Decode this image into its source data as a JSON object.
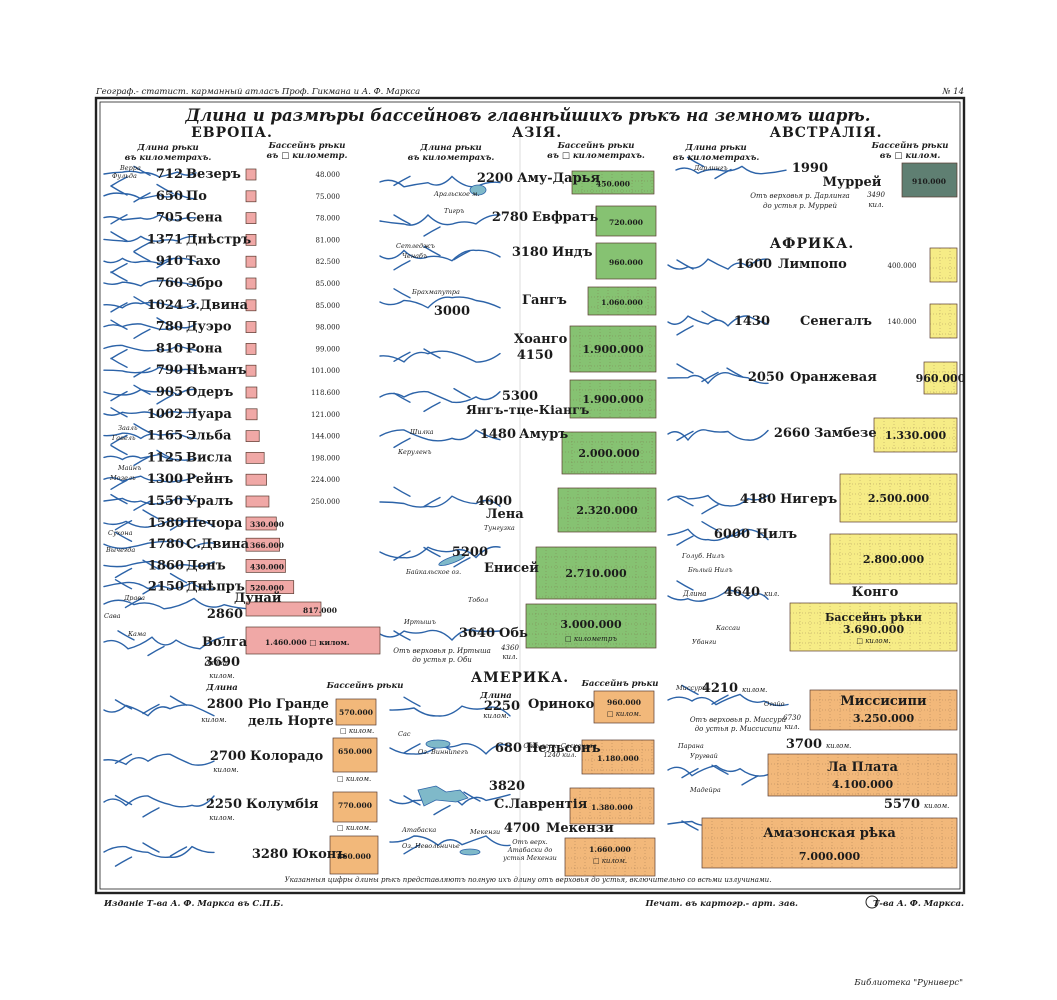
{
  "header": {
    "left": "Географ.- статист. карманный атласъ Проф. Гикмана и А. Ф. Маркса",
    "right": "№ 14",
    "title": "Длина и размѣры бассейновъ главнѣйшихъ рѣкъ на земномъ шарѣ."
  },
  "colors": {
    "europe": "#f0a8a6",
    "asia": "#86c272",
    "australia": "#5f7f72",
    "africa": "#f6ec86",
    "america": "#f2b87a",
    "river": "#2c63a8",
    "frame": "#222222"
  },
  "europe": {
    "name": "ЕВРОПА.",
    "col_length": "Длина рѣки въ километрахъ.",
    "col_basin": "Бассейнъ рѣки въ □ километр.",
    "rivers": [
      {
        "length": "712",
        "name": "Везеръ",
        "basin": "48.000"
      },
      {
        "length": "650",
        "name": "По",
        "basin": "75.000"
      },
      {
        "length": "705",
        "name": "Сена",
        "basin": "78.000"
      },
      {
        "length": "1371",
        "name": "Днѣстръ",
        "basin": "81.000"
      },
      {
        "length": "910",
        "name": "Тахо",
        "basin": "82.500"
      },
      {
        "length": "760",
        "name": "Эбро",
        "basin": "85.000"
      },
      {
        "length": "1024",
        "name": "З.Двина",
        "basin": "85.000"
      },
      {
        "length": "780",
        "name": "Дуэро",
        "basin": "98.000"
      },
      {
        "length": "810",
        "name": "Рона",
        "basin": "99.000"
      },
      {
        "length": "790",
        "name": "Нѣманъ",
        "basin": "101.000"
      },
      {
        "length": "905",
        "name": "Одеръ",
        "basin": "118.600"
      },
      {
        "length": "1002",
        "name": "Луара",
        "basin": "121.000"
      },
      {
        "length": "1165",
        "name": "Эльба",
        "basin": "144.000"
      },
      {
        "length": "1125",
        "name": "Висла",
        "basin": "198.000"
      },
      {
        "length": "1300",
        "name": "Рейнъ",
        "basin": "224.000"
      },
      {
        "length": "1550",
        "name": "Уралъ",
        "basin": "250.000"
      },
      {
        "length": "1580",
        "name": "Печора",
        "basin": "330.000"
      },
      {
        "length": "1780",
        "name": "С.Двина",
        "basin": "366.000"
      },
      {
        "length": "1860",
        "name": "Донъ",
        "basin": "430.000"
      },
      {
        "length": "2150",
        "name": "Днѣпръ",
        "basin": "520.000"
      },
      {
        "length": "2860",
        "name": "Дунай",
        "basin": "817.000"
      },
      {
        "length": "3690",
        "name": "Волга",
        "basin": "1.460.000",
        "basin_unit": "□ килом.",
        "length_prefix": "длина",
        "length_unit": "килом."
      }
    ],
    "labels": [
      "Верра",
      "Фульда",
      "Зааль",
      "Гавель",
      "Майнъ",
      "Мозель",
      "Сухона",
      "Вычегда",
      "Драва",
      "Сава",
      "Кама"
    ]
  },
  "asia": {
    "name": "АЗІЯ.",
    "col_length": "Длина рѣки въ километрахъ.",
    "col_basin": "Бассейнъ рѣки въ □ километрахъ.",
    "rivers": [
      {
        "length": "2200",
        "name": "Аму-Дарья",
        "basin": "450.000"
      },
      {
        "length": "2780",
        "name": "Евфратъ",
        "basin": "720.000"
      },
      {
        "length": "3180",
        "name": "Индъ",
        "basin": "960.000"
      },
      {
        "length": "3000",
        "name": "Гангъ",
        "basin": "1.060.000"
      },
      {
        "length": "4150",
        "name": "Хоанго",
        "basin": "1.900.000"
      },
      {
        "length": "5300",
        "name": "Янгъ-тце-Кіангъ",
        "basin": "1.900.000"
      },
      {
        "length": "1480",
        "name": "Амуръ",
        "basin": "2.000.000"
      },
      {
        "length": "4600",
        "name": "Лена",
        "basin": "2.320.000"
      },
      {
        "length": "5200",
        "name": "Енисей",
        "basin": "2.710.000"
      },
      {
        "length": "3640",
        "name": "Обь",
        "basin": "3.000.000",
        "basin_unit": "□ километръ"
      }
    ],
    "ob_note": "Отъ верховья р. Иртыша до устья р. Оби",
    "ob_note_value": "4360 кил.",
    "labels": [
      "Аральское м.",
      "Тигръ",
      "Сетледжъ",
      "Ченабъ",
      "Брахмапутра",
      "Шилка",
      "Керуленъ",
      "Тунгузка",
      "Байкальское оз.",
      "Тобол",
      "Иртышъ"
    ]
  },
  "australia": {
    "name": "АВСТРАЛІЯ.",
    "col_length": "Длина рѣки въ километрахъ.",
    "col_basin": "Бассейнъ рѣки въ □ килом.",
    "river": {
      "length": "1990",
      "name": "Муррей",
      "basin": "910.000"
    },
    "note": "Отъ верховья р. Дарлинга до устья р. Муррей",
    "note_value": "3490 кил.",
    "labels": [
      "Дарлингъ"
    ]
  },
  "africa": {
    "name": "АФРИКА.",
    "rivers": [
      {
        "length": "1600",
        "name": "Лимпопо",
        "basin": "400.000"
      },
      {
        "length": "1430",
        "name": "Сенегалъ",
        "basin": "140.000"
      },
      {
        "length": "2050",
        "name": "Оранжевая",
        "basin": "960.000"
      },
      {
        "length": "2660",
        "name": "Замбезе",
        "basin": "1.330.000"
      },
      {
        "length": "4180",
        "name": "Нигеръ",
        "basin": "2.500.000"
      },
      {
        "length": "6000",
        "name": "Нилъ",
        "basin": "2.800.000"
      },
      {
        "length": "4640",
        "name": "Конго",
        "basin": "3.690.000",
        "length_prefix": "Длина",
        "length_unit": "кил.",
        "basin_label": "Бассейнъ рѣки",
        "basin_unit": "□ килом."
      }
    ],
    "labels": [
      "Голуб. Нилъ",
      "Бѣлый Нилъ",
      "Кассаи",
      "Убанги"
    ]
  },
  "america": {
    "name": "АМЕРИКА.",
    "col_length": "Длина",
    "col_basin": "Бассейнъ рѣки",
    "unit": "килом.",
    "rivers": [
      {
        "length": "2800",
        "name": "Ріо Гранде дель Норте",
        "basin": "570.000",
        "unit": "□ килом."
      },
      {
        "length": "2700",
        "name": "Колорадо",
        "basin": "650.000",
        "unit": "□ килом."
      },
      {
        "length": "2250",
        "name": "Колумбія",
        "basin": "770.000",
        "unit": "□ килом."
      },
      {
        "length": "3280",
        "name": "Юконъ",
        "basin": "860.000"
      },
      {
        "length": "2250",
        "name": "Ориноко",
        "basin": "960.000",
        "unit": "□ килом."
      },
      {
        "length": "680",
        "name": "Нельсонъ",
        "basin": "1.180.000"
      },
      {
        "length": "3820",
        "name": "С.Лаврентія",
        "basin": "1.380.000"
      },
      {
        "length": "4700",
        "name": "Мекензи",
        "basin": "1.660.000",
        "unit": "□ килом."
      },
      {
        "length": "4210",
        "name": "Миссисипи",
        "basin": "3.250.000",
        "unit": "□ килом."
      },
      {
        "length": "3700",
        "name": "Ла Плата",
        "basin": "4.100.000",
        "unit": "□ килом."
      },
      {
        "length": "5570",
        "name": "Амазонская рѣка",
        "basin": "7.000.000",
        "unit": "□ килом."
      }
    ],
    "nelson_note": "Отъ верх. Саскачева",
    "nelson_note_value": "1240 кил.",
    "mackenzie_note": "Отъ верх. Атабаски до устья Мекензи",
    "mississippi_note": "Отъ верховья р. Миссури до устья р. Миссисипи",
    "mississippi_note_value": "6730 кил.",
    "labels": [
      "Сас",
      "Оз. Виннипегъ",
      "Атабаска",
      "Миссури",
      "Огайо",
      "Парана",
      "Уругвай",
      "Мадейра",
      "Оз. Невольничье",
      "Мекензи"
    ]
  },
  "footer": {
    "note": "Указанныя цифры длины рѣкъ представляютъ полную ихъ длину отъ верховья до устья, включительно со всѣми излучинами.",
    "left": "Изданіе Т-ва А. Ф. Маркса въ С.П.Б.",
    "mid": "Печат. въ картогр.- арт. зав.",
    "right": "Т-ва А. Ф. Маркса.",
    "library": "Библиотека \"Руниверс\""
  }
}
